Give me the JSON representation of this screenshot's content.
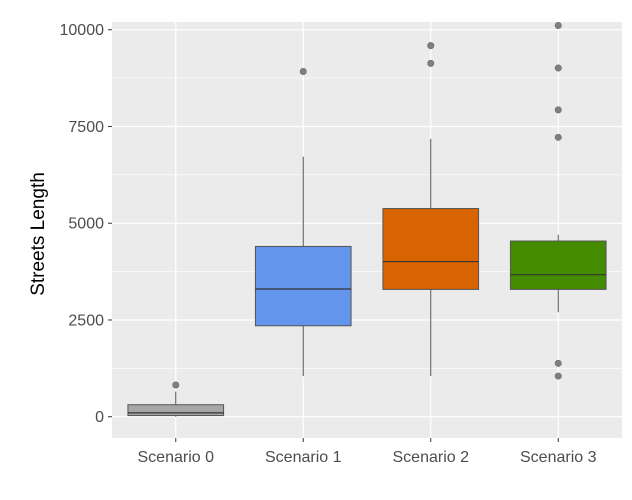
{
  "chart_data": {
    "type": "boxplot",
    "title": "",
    "xlabel": "",
    "ylabel": "Streets Length",
    "ylim": [
      -550,
      10200
    ],
    "y_ticks": [
      0,
      2500,
      5000,
      7500,
      10000
    ],
    "y_tick_labels": [
      "0",
      "2500",
      "5000",
      "7500",
      "10000"
    ],
    "grid": true,
    "legend": "none",
    "panel_color": "#ebebeb",
    "grid_color": "#ffffff",
    "outline_color": "#555555",
    "categories": [
      "Scenario 0",
      "Scenario 1",
      "Scenario 2",
      "Scenario 3"
    ],
    "series": [
      {
        "category": "Scenario 0",
        "fill": "#a6a6a6",
        "whisker_low": 0,
        "q1": 30,
        "median": 100,
        "q3": 310,
        "whisker_high": 650,
        "outliers": [
          820
        ]
      },
      {
        "category": "Scenario 1",
        "fill": "#6495ed",
        "whisker_low": 1050,
        "q1": 2350,
        "median": 3300,
        "q3": 4400,
        "whisker_high": 6720,
        "outliers": [
          8920
        ]
      },
      {
        "category": "Scenario 2",
        "fill": "#d76401",
        "whisker_low": 1050,
        "q1": 3290,
        "median": 4010,
        "q3": 5380,
        "whisker_high": 7180,
        "outliers": [
          9130,
          9590
        ]
      },
      {
        "category": "Scenario 3",
        "fill": "#458b00",
        "whisker_low": 2700,
        "q1": 3290,
        "median": 3670,
        "q3": 4540,
        "whisker_high": 4700,
        "outliers": [
          1050,
          1380,
          7220,
          7930,
          9010,
          10110
        ]
      }
    ]
  }
}
